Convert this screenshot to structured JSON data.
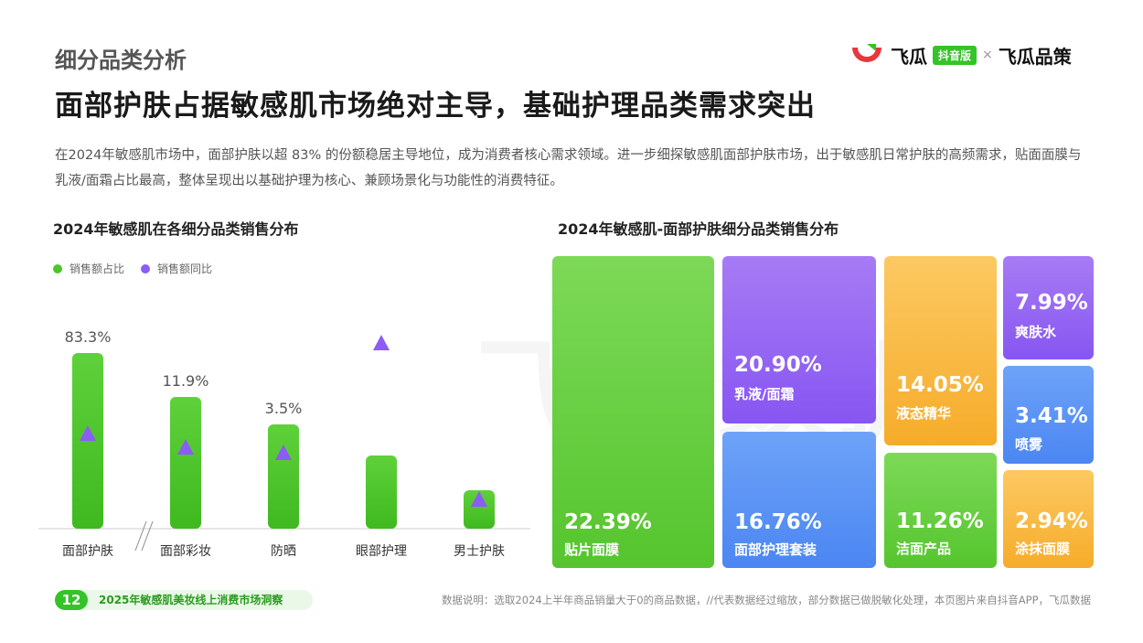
{
  "header": {
    "section_title": "细分品类分析",
    "headline": "面部护肤占据敏感肌市场绝对主导，基础护理品类需求突出",
    "description": "在2024年敏感肌市场中，面部护肤以超 83% 的份额稳居主导地位，成为消费者核心需求领域。进一步细探敏感肌面部护肤市场，出于敏感肌日常护肤的高频需求，贴面面膜与乳液/面霜占比最高，整体呈现出以基础护理为核心、兼顾场景化与功能性的消费特征。"
  },
  "brand": {
    "name1": "飞瓜",
    "badge": "抖音版",
    "separator": "×",
    "name2": "飞瓜品策",
    "logo_color": "#e8383d"
  },
  "watermark": "飞瓜数据",
  "colors": {
    "green": "#4cc62a",
    "purple": "#8b5cf6",
    "blue": "#4f8ef7",
    "orange": "#f9b83a"
  },
  "chart_data": [
    {
      "type": "bar",
      "title": "2024年敏感肌在各细分品类销售分布",
      "categories": [
        "面部护肤",
        "面部彩妆",
        "防晒",
        "眼部护理",
        "男士护肤"
      ],
      "series": [
        {
          "name": "销售额占比",
          "values": [
            83.3,
            11.9,
            3.5,
            null,
            null
          ],
          "labels": [
            "83.3%",
            "11.9%",
            "3.5%",
            "",
            ""
          ]
        },
        {
          "name": "销售额同比",
          "values": [
            null,
            null,
            null,
            null,
            null
          ]
        }
      ],
      "broken_axis_after": "面部护肤"
    },
    {
      "type": "treemap",
      "title": "2024年敏感肌-面部护肤细分品类销售分布",
      "items": [
        {
          "label": "贴片面膜",
          "value": "22.39%",
          "color": "green"
        },
        {
          "label": "乳液/面霜",
          "value": "20.90%",
          "color": "purple"
        },
        {
          "label": "面部护理套装",
          "value": "16.76%",
          "color": "blue"
        },
        {
          "label": "液态精华",
          "value": "14.05%",
          "color": "orange"
        },
        {
          "label": "洁面产品",
          "value": "11.26%",
          "color": "green"
        },
        {
          "label": "爽肤水",
          "value": "7.99%",
          "color": "purple"
        },
        {
          "label": "喷雾",
          "value": "3.41%",
          "color": "blue"
        },
        {
          "label": "涂抹面膜",
          "value": "2.94%",
          "color": "orange"
        }
      ]
    }
  ],
  "footer": {
    "page_number": "12",
    "report_name": "2025年敏感肌美妆线上消费市场洞察",
    "note": "数据说明：选取2024上半年商品销量大于0的商品数据，//代表数据经过缩放，部分数据已做脱敏化处理，本页图片来自抖音APP，飞瓜数据"
  }
}
